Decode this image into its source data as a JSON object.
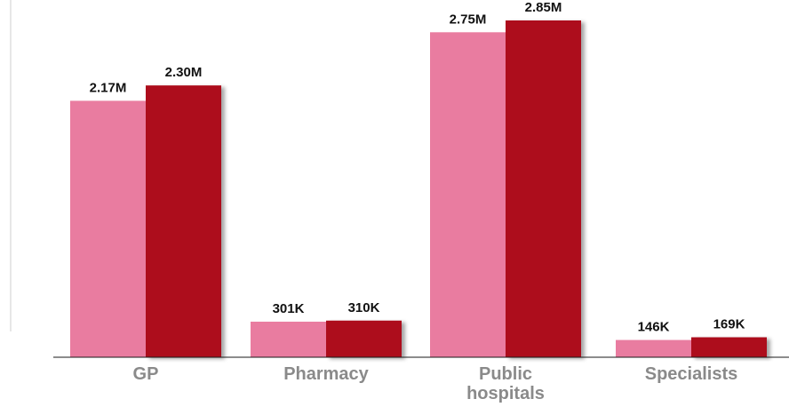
{
  "chart_data": {
    "type": "bar",
    "title": "",
    "xlabel": "",
    "ylabel": "",
    "ylim": [
      0,
      2.85
    ],
    "grid": false,
    "legend": "none",
    "categories": [
      [
        "GP"
      ],
      [
        "Pharmacy"
      ],
      [
        "Public",
        "hospitals"
      ],
      [
        "Specialists"
      ]
    ],
    "series": [
      {
        "color": "#e97ca0",
        "values": [
          2.17,
          0.301,
          2.75,
          0.146
        ],
        "labels": [
          "2.17M",
          "301K",
          "2.75M",
          "146K"
        ]
      },
      {
        "color": "#ad0e1e",
        "values": [
          2.3,
          0.31,
          2.85,
          0.169
        ],
        "labels": [
          "2.30M",
          "310K",
          "2.85M",
          "169K"
        ]
      }
    ]
  }
}
